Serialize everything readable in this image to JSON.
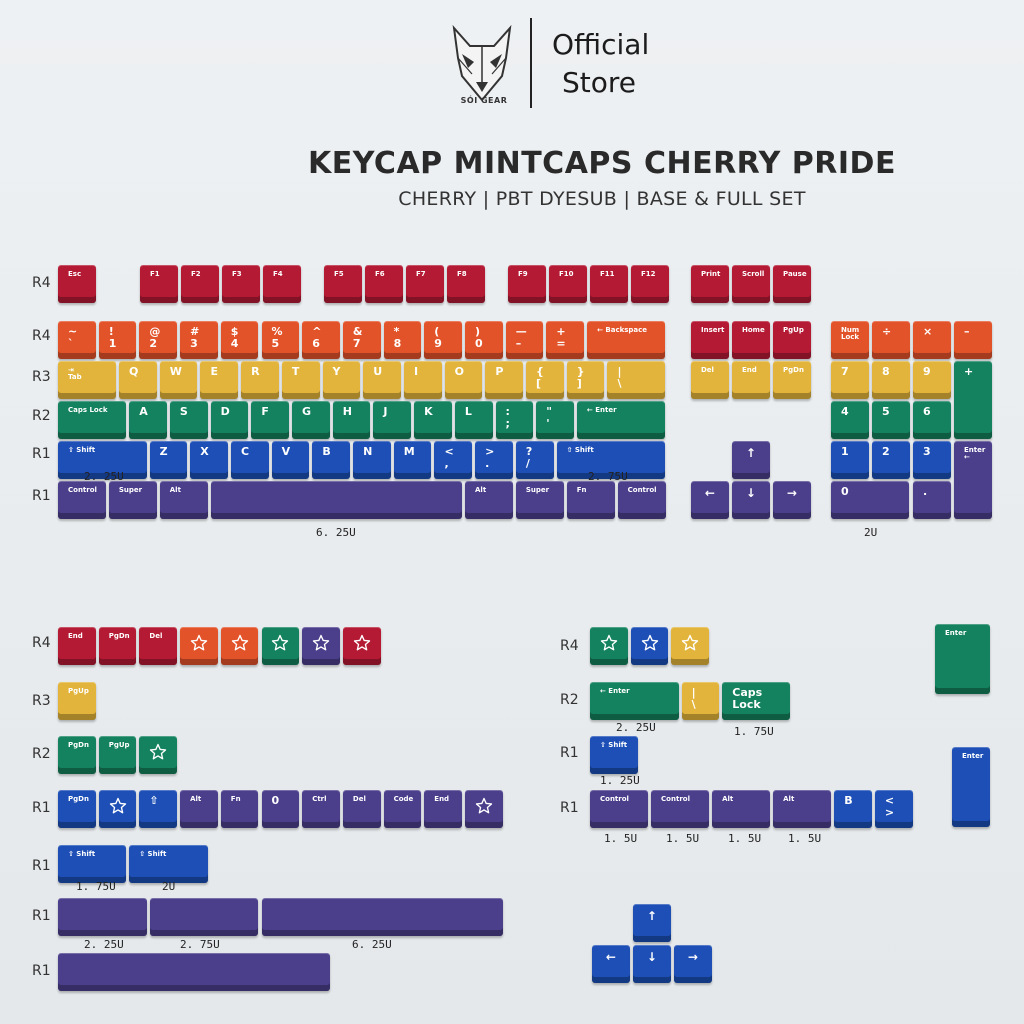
{
  "brand": {
    "logo_name": "wolf-head-logo",
    "logo_text": "SÓI GEAR",
    "official": "Official",
    "store": "Store"
  },
  "header": {
    "title": "KEYCAP MINTCAPS CHERRY PRIDE",
    "subtitle": "CHERRY | PBT DYESUB | BASE & FULL SET"
  },
  "colors": {
    "red": "#b41a34",
    "orange": "#e3532a",
    "yellow": "#e2b43b",
    "green": "#14825e",
    "blue": "#1d4fb6",
    "purple": "#4b3f8c",
    "background": "#e9ecee"
  },
  "row_labels": {
    "base": [
      "R4",
      "R4",
      "R3",
      "R2",
      "R1",
      "R1"
    ],
    "extra_left": [
      "R4",
      "R3",
      "R2",
      "R1",
      "R1",
      "R1",
      "R1"
    ],
    "extra_right": [
      "R4",
      "R2",
      "R1",
      "R1"
    ]
  },
  "size_labels": {
    "base": [
      "2. 25U",
      "2. 75U",
      "6. 25U",
      "2U"
    ],
    "extra_left": [
      "1. 75U",
      "2U",
      "2. 25U",
      "2. 75U",
      "6. 25U"
    ],
    "extra_right": [
      "2. 25U",
      "1. 75U",
      "1. 25U",
      "1. 5U",
      "1. 5U",
      "1. 5U",
      "1. 5U"
    ]
  },
  "base_kit": {
    "fn_row": [
      "Esc",
      "F1",
      "F2",
      "F3",
      "F4",
      "F5",
      "F6",
      "F7",
      "F8",
      "F9",
      "F10",
      "F11",
      "F12",
      "Print",
      "Scroll",
      "Pause"
    ],
    "number_row": [
      "~\n`",
      "!\n1",
      "@\n2",
      "#\n3",
      "$\n4",
      "%\n5",
      "^\n6",
      "&\n7",
      "*\n8",
      "(\n9",
      ")\n0",
      "—\n–",
      "+\n=",
      "← Backspace",
      "Insert",
      "Home",
      "PgUp",
      "Num\nLock",
      "÷",
      "×",
      "–"
    ],
    "top_row": [
      "⇥\nTab",
      "Q",
      "W",
      "E",
      "R",
      "T",
      "Y",
      "U",
      "I",
      "O",
      "P",
      "{\n[",
      "}\n]",
      "|\n\\",
      "Del",
      "End",
      "PgDn",
      "7",
      "8",
      "9",
      "+"
    ],
    "home_row": [
      "Caps Lock",
      "A",
      "S",
      "D",
      "F",
      "G",
      "H",
      "J",
      "K",
      "L",
      ":\n;",
      "\"\n'",
      "← Enter",
      "4",
      "5",
      "6"
    ],
    "bottom_row": [
      "⇧ Shift",
      "Z",
      "X",
      "C",
      "V",
      "B",
      "N",
      "M",
      "<\n,",
      ">\n.",
      "?\n/",
      "⇧ Shift",
      "↑",
      "1",
      "2",
      "3",
      "Enter\n←"
    ],
    "space_row": [
      "Control",
      "Super",
      "Alt",
      "",
      "Alt",
      "Super",
      "Fn",
      "Control",
      "←",
      "↓",
      "→",
      "0",
      "."
    ]
  },
  "extras_left": {
    "r4": [
      "End",
      "PgDn",
      "Del",
      "★",
      "★",
      "★",
      "★",
      "★"
    ],
    "r3": [
      "PgUp"
    ],
    "r2": [
      "PgDn",
      "PgUp",
      "★"
    ],
    "r1_mods": [
      "PgDn",
      "★",
      "⇧",
      "Alt",
      "Fn",
      "0",
      "Ctrl",
      "Del",
      "Code",
      "End",
      "★"
    ],
    "r1_shifts": [
      "⇧ Shift",
      "⇧ Shift"
    ],
    "r1_spaces": [
      "",
      "",
      ""
    ],
    "r1_space": [
      ""
    ]
  },
  "extras_right": {
    "r4": [
      "★",
      "★",
      "★"
    ],
    "r2": [
      "← Enter",
      "|\n\\",
      "Caps\nLock"
    ],
    "r1_shift": [
      "⇧ Shift"
    ],
    "r1_mods": [
      "Control",
      "Control",
      "Alt",
      "Alt",
      "B",
      "<\n>"
    ],
    "iso_enter": "Enter",
    "tall_enter": "Enter",
    "arrows": [
      "↑",
      "←",
      "↓",
      "→"
    ]
  }
}
